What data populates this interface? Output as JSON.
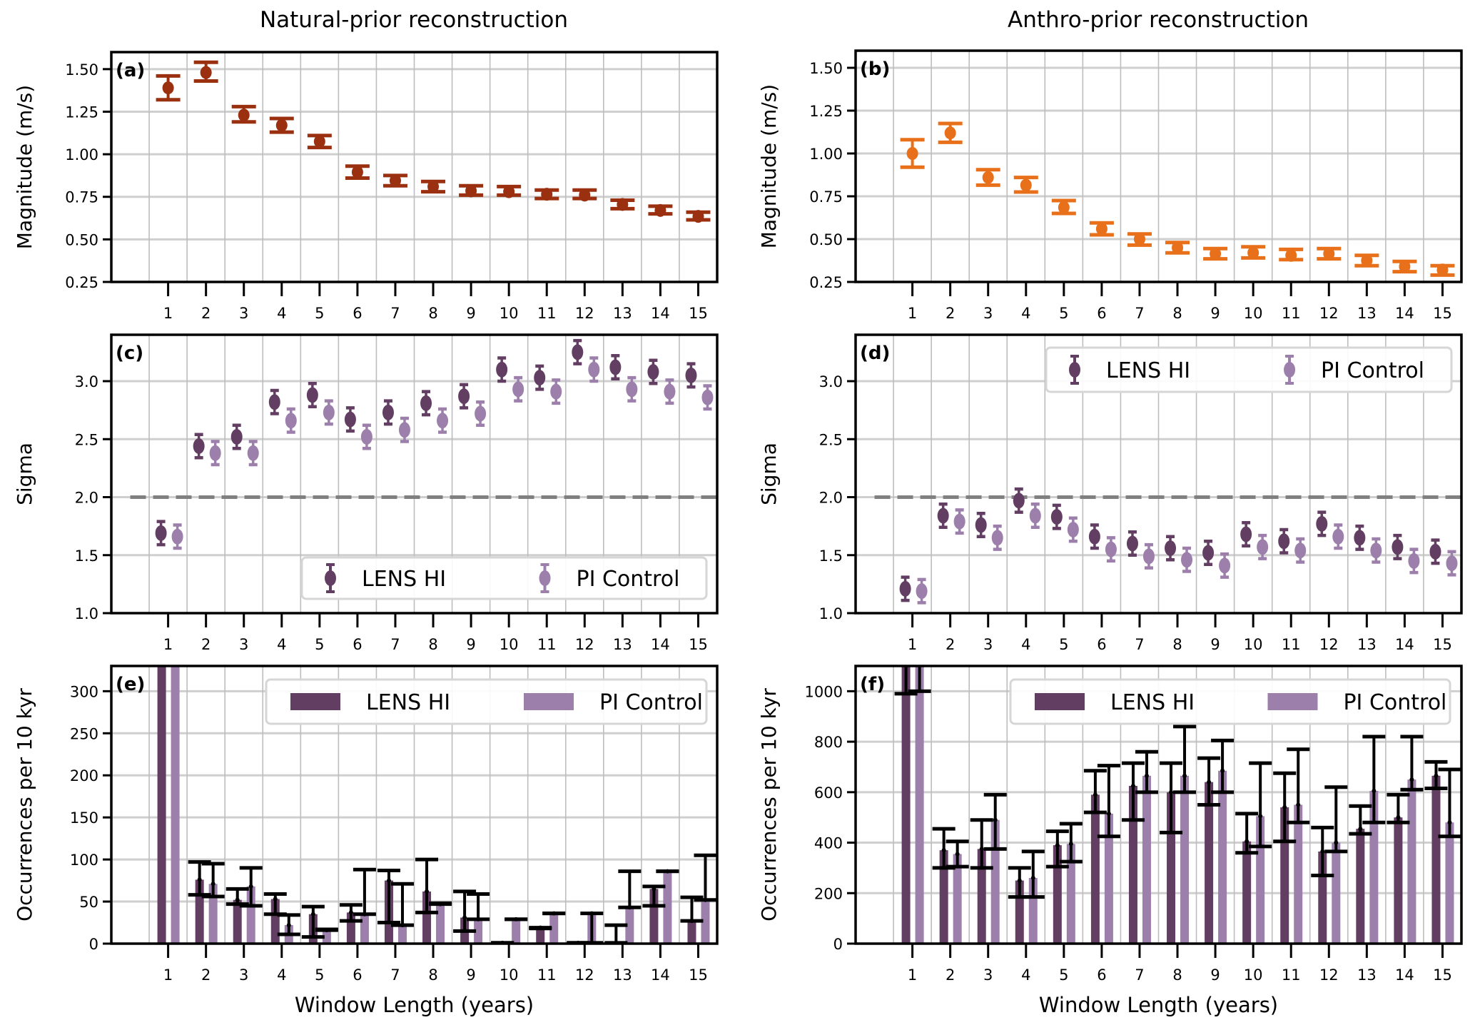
{
  "titles": {
    "left": "Natural-prior reconstruction",
    "right": "Anthro-prior reconstruction"
  },
  "colors": {
    "natural": "#9a3010",
    "anthro": "#e8701a",
    "lens": "#633e63",
    "pi": "#9c7fab",
    "threshold": "#808080",
    "errorbar": "#000000"
  },
  "chart_data": [
    {
      "id": "a",
      "panel_label": "(a)",
      "type": "scatter",
      "kind": "errorbar",
      "title": "",
      "xlabel": "",
      "ylabel": "Magnitude (m/s)",
      "x": [
        1,
        2,
        3,
        4,
        5,
        6,
        7,
        8,
        9,
        10,
        11,
        12,
        13,
        14,
        15
      ],
      "xlim": [
        -0.5,
        15.5
      ],
      "ylim": [
        0.25,
        1.6
      ],
      "yticks": [
        "0.25",
        "0.50",
        "0.75",
        "1.00",
        "1.25",
        "1.50"
      ],
      "grid": true,
      "series": [
        {
          "name": "Natural-prior",
          "color_key": "natural",
          "values": [
            1.39,
            1.48,
            1.23,
            1.17,
            1.075,
            0.895,
            0.845,
            0.81,
            0.785,
            0.78,
            0.765,
            0.76,
            0.705,
            0.67,
            0.635
          ],
          "err_low": [
            1.32,
            1.43,
            1.19,
            1.13,
            1.04,
            0.86,
            0.815,
            0.78,
            0.76,
            0.76,
            0.74,
            0.74,
            0.68,
            0.65,
            0.615
          ],
          "err_high": [
            1.46,
            1.54,
            1.28,
            1.21,
            1.11,
            0.93,
            0.875,
            0.84,
            0.815,
            0.81,
            0.79,
            0.79,
            0.73,
            0.695,
            0.66
          ]
        }
      ]
    },
    {
      "id": "b",
      "panel_label": "(b)",
      "type": "scatter",
      "kind": "errorbar",
      "title": "",
      "xlabel": "",
      "ylabel": "Magnitude (m/s)",
      "x": [
        1,
        2,
        3,
        4,
        5,
        6,
        7,
        8,
        9,
        10,
        11,
        12,
        13,
        14,
        15
      ],
      "xlim": [
        -0.5,
        15.5
      ],
      "ylim": [
        0.25,
        1.6
      ],
      "yticks": [
        "0.25",
        "0.50",
        "0.75",
        "1.00",
        "1.25",
        "1.50"
      ],
      "grid": true,
      "series": [
        {
          "name": "Anthro-prior",
          "color_key": "anthro",
          "values": [
            1.0,
            1.12,
            0.86,
            0.815,
            0.685,
            0.56,
            0.5,
            0.45,
            0.415,
            0.42,
            0.405,
            0.415,
            0.375,
            0.34,
            0.32
          ],
          "err_low": [
            0.92,
            1.065,
            0.815,
            0.775,
            0.65,
            0.525,
            0.465,
            0.42,
            0.385,
            0.39,
            0.38,
            0.385,
            0.345,
            0.31,
            0.29
          ],
          "err_high": [
            1.08,
            1.175,
            0.905,
            0.86,
            0.725,
            0.595,
            0.53,
            0.48,
            0.445,
            0.455,
            0.44,
            0.445,
            0.405,
            0.37,
            0.345
          ]
        }
      ]
    },
    {
      "id": "c",
      "panel_label": "(c)",
      "type": "scatter",
      "kind": "errorbar-pair",
      "title": "",
      "xlabel": "",
      "ylabel": "Sigma",
      "x": [
        1,
        2,
        3,
        4,
        5,
        6,
        7,
        8,
        9,
        10,
        11,
        12,
        13,
        14,
        15
      ],
      "xlim": [
        -0.5,
        15.5
      ],
      "ylim": [
        1.0,
        3.4
      ],
      "yticks": [
        "1.0",
        "1.5",
        "2.0",
        "2.5",
        "3.0"
      ],
      "grid": true,
      "hline": 2.0,
      "legend": "bottom-right",
      "series": [
        {
          "name": "LENS HI",
          "color_key": "lens",
          "err": 0.1,
          "values": [
            1.69,
            2.44,
            2.52,
            2.82,
            2.88,
            2.67,
            2.73,
            2.81,
            2.87,
            3.1,
            3.03,
            3.25,
            3.12,
            3.08,
            3.05
          ]
        },
        {
          "name": "PI Control",
          "color_key": "pi",
          "err": 0.1,
          "values": [
            1.66,
            2.38,
            2.38,
            2.66,
            2.73,
            2.52,
            2.58,
            2.66,
            2.72,
            2.93,
            2.91,
            3.1,
            2.93,
            2.91,
            2.86
          ]
        }
      ]
    },
    {
      "id": "d",
      "panel_label": "(d)",
      "type": "scatter",
      "kind": "errorbar-pair",
      "title": "",
      "xlabel": "",
      "ylabel": "Sigma",
      "x": [
        1,
        2,
        3,
        4,
        5,
        6,
        7,
        8,
        9,
        10,
        11,
        12,
        13,
        14,
        15
      ],
      "xlim": [
        -0.5,
        15.5
      ],
      "ylim": [
        1.0,
        3.4
      ],
      "yticks": [
        "1.0",
        "1.5",
        "2.0",
        "2.5",
        "3.0"
      ],
      "grid": true,
      "hline": 2.0,
      "legend": "top-right",
      "series": [
        {
          "name": "LENS HI",
          "color_key": "lens",
          "err": 0.1,
          "values": [
            1.21,
            1.84,
            1.76,
            1.97,
            1.83,
            1.66,
            1.6,
            1.56,
            1.52,
            1.68,
            1.62,
            1.77,
            1.65,
            1.57,
            1.53
          ]
        },
        {
          "name": "PI Control",
          "color_key": "pi",
          "err": 0.1,
          "values": [
            1.19,
            1.79,
            1.65,
            1.84,
            1.72,
            1.55,
            1.49,
            1.46,
            1.41,
            1.57,
            1.54,
            1.66,
            1.54,
            1.45,
            1.43
          ]
        }
      ]
    },
    {
      "id": "e",
      "panel_label": "(e)",
      "type": "bar",
      "kind": "bar-pair",
      "title": "",
      "xlabel": "Window Length (years)",
      "ylabel": "Occurrences per 10 kyr",
      "x": [
        1,
        2,
        3,
        4,
        5,
        6,
        7,
        8,
        9,
        10,
        11,
        12,
        13,
        14,
        15
      ],
      "xlim": [
        -0.5,
        15.5
      ],
      "ylim": [
        0,
        330
      ],
      "yticks": [
        "0",
        "50",
        "100",
        "150",
        "200",
        "250",
        "300"
      ],
      "grid": true,
      "legend": "top-right",
      "series": [
        {
          "name": "LENS HI",
          "color_key": "lens",
          "values": [
            1000,
            76,
            52,
            53,
            35,
            37,
            75,
            62,
            31,
            1,
            19,
            1,
            1,
            65,
            27
          ],
          "err_low": [
            null,
            58,
            47,
            35,
            8,
            27,
            25,
            37,
            15,
            1,
            18,
            1,
            1,
            45,
            27
          ],
          "err_high": [
            null,
            97,
            65,
            59,
            44,
            46,
            87,
            100,
            62,
            1,
            19,
            1,
            22,
            68,
            55
          ]
        },
        {
          "name": "PI Control",
          "color_key": "pi",
          "values": [
            1000,
            71,
            68,
            22,
            16,
            35,
            22,
            47,
            29,
            29,
            36,
            36,
            43,
            86,
            52
          ],
          "err_low": [
            null,
            56,
            45,
            11,
            16,
            35,
            22,
            47,
            29,
            29,
            36,
            1,
            43,
            86,
            52
          ],
          "err_high": [
            null,
            95,
            90,
            34,
            17,
            88,
            71,
            48,
            59,
            29,
            36,
            36,
            86,
            86,
            105
          ]
        }
      ]
    },
    {
      "id": "f",
      "panel_label": "(f)",
      "type": "bar",
      "kind": "bar-pair",
      "title": "",
      "xlabel": "Window Length (years)",
      "ylabel": "Occurrences per 10 kyr",
      "x": [
        1,
        2,
        3,
        4,
        5,
        6,
        7,
        8,
        9,
        10,
        11,
        12,
        13,
        14,
        15
      ],
      "xlim": [
        -0.5,
        15.5
      ],
      "ylim": [
        0,
        1100
      ],
      "yticks": [
        "0",
        "200",
        "400",
        "600",
        "800",
        "1000"
      ],
      "grid": true,
      "legend": "top-right",
      "series": [
        {
          "name": "LENS HI",
          "color_key": "lens",
          "values": [
            1200,
            370,
            375,
            250,
            390,
            590,
            625,
            600,
            640,
            405,
            540,
            365,
            455,
            500,
            665
          ],
          "err_low": [
            990,
            300,
            300,
            185,
            305,
            520,
            490,
            440,
            550,
            360,
            405,
            270,
            435,
            480,
            615
          ],
          "err_high": [
            1300,
            455,
            490,
            300,
            445,
            685,
            715,
            715,
            735,
            515,
            675,
            460,
            545,
            590,
            720
          ]
        },
        {
          "name": "PI Control",
          "color_key": "pi",
          "values": [
            1200,
            355,
            490,
            260,
            395,
            515,
            665,
            665,
            685,
            505,
            550,
            400,
            605,
            650,
            480
          ],
          "err_low": [
            1000,
            305,
            375,
            185,
            325,
            425,
            600,
            600,
            600,
            385,
            480,
            365,
            480,
            610,
            425
          ],
          "err_high": [
            1300,
            405,
            590,
            365,
            475,
            705,
            760,
            860,
            805,
            715,
            770,
            620,
            820,
            820,
            690
          ]
        }
      ]
    }
  ]
}
